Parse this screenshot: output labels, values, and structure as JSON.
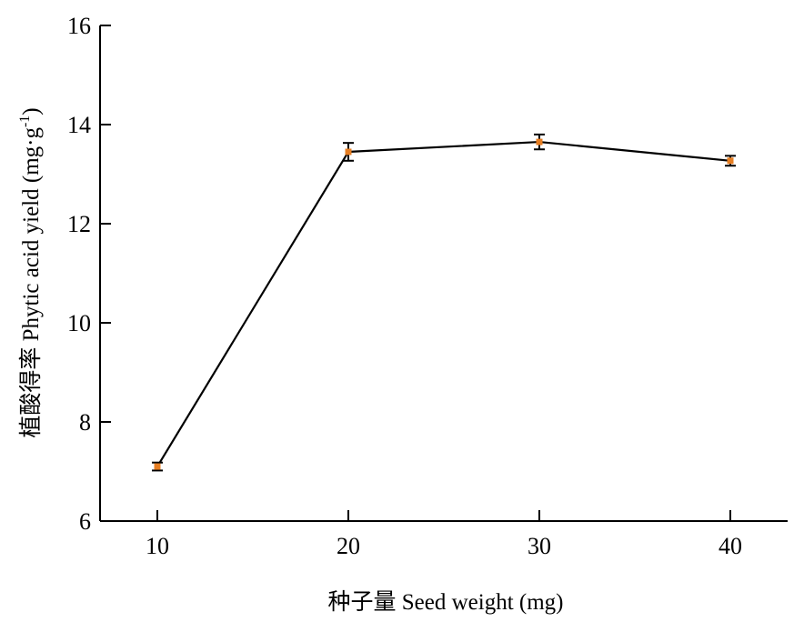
{
  "chart_data": {
    "type": "line",
    "title": "",
    "xlabel": "种子量 Seed weight (mg)",
    "ylabel": "植酸得率 Phytic acid yield (mg·g⁻¹)",
    "ylabel_parts": {
      "prefix": "植酸得率 Phytic acid yield (mg·g",
      "superscript": "-1",
      "suffix": ")"
    },
    "xlim": [
      7,
      43
    ],
    "ylim": [
      6,
      16
    ],
    "xticks": [
      10,
      20,
      30,
      40
    ],
    "yticks": [
      6,
      8,
      10,
      12,
      14,
      16
    ],
    "grid": false,
    "legend": "none",
    "series": [
      {
        "x": [
          10,
          20,
          30,
          40
        ],
        "values": [
          7.1,
          13.45,
          13.65,
          13.27
        ],
        "errors": [
          0.08,
          0.18,
          0.15,
          0.1
        ],
        "line_color": "#000000",
        "marker_color": "#e67e22"
      }
    ]
  }
}
